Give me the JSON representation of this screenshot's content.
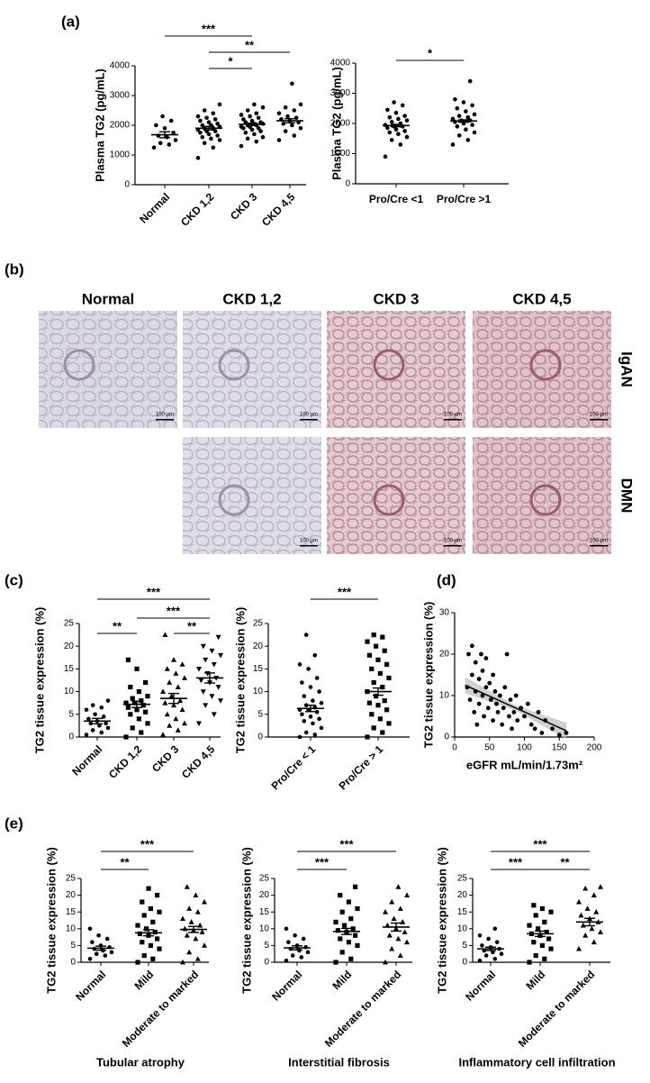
{
  "panel_labels": [
    "(a)",
    "(b)",
    "(c)",
    "(d)",
    "(e)"
  ],
  "histology": {
    "columns": [
      "Normal",
      "CKD 1,2",
      "CKD 3",
      "CKD 4,5"
    ],
    "rows": [
      "IgAN",
      "DMN"
    ],
    "scale_bar": "100 μm"
  },
  "chart_data": [
    {
      "type": "strip",
      "y_label": "Plasma TG2 (pg/mL)",
      "categories": [
        "Normal",
        "CKD 1,2",
        "CKD 3",
        "CKD 4,5"
      ],
      "ylim": [
        0,
        4000
      ],
      "yticks": [
        0,
        1000,
        2000,
        3000,
        4000
      ],
      "markers": [
        "circle",
        "circle",
        "circle",
        "circle"
      ],
      "groups": [
        {
          "values": [
            1250,
            1350,
            1400,
            1500,
            1600,
            1650,
            1750,
            1900,
            2000,
            2150,
            2300
          ]
        },
        {
          "values": [
            900,
            1250,
            1400,
            1500,
            1550,
            1600,
            1650,
            1700,
            1750,
            1800,
            1800,
            1850,
            1900,
            1900,
            1950,
            2000,
            2000,
            2050,
            2100,
            2150,
            2200,
            2250,
            2300,
            2400,
            2500,
            2700
          ]
        },
        {
          "values": [
            1300,
            1450,
            1550,
            1600,
            1700,
            1750,
            1800,
            1850,
            1900,
            1900,
            1950,
            1950,
            2000,
            2000,
            2050,
            2050,
            2100,
            2100,
            2150,
            2200,
            2250,
            2300,
            2350,
            2400,
            2500,
            2600,
            2700
          ]
        },
        {
          "values": [
            1500,
            1650,
            1800,
            1900,
            2000,
            2050,
            2100,
            2150,
            2200,
            2250,
            2300,
            2400,
            2500,
            2600,
            2700,
            3400
          ]
        }
      ],
      "means": [
        1680,
        1900,
        2030,
        2150
      ],
      "sems": [
        100,
        60,
        40,
        70
      ],
      "significance": [
        {
          "pair": [
            0,
            2
          ],
          "label": "***"
        },
        {
          "pair": [
            1,
            3
          ],
          "label": "**"
        },
        {
          "pair": [
            1,
            2
          ],
          "label": "*"
        }
      ]
    },
    {
      "type": "strip",
      "y_label": "Plasma TG2 (pg/mL)",
      "categories": [
        "Pro/Cre <1",
        "Pro/Cre >1"
      ],
      "ylim": [
        0,
        4000
      ],
      "yticks": [
        0,
        1000,
        2000,
        3000,
        4000
      ],
      "markers": [
        "circle",
        "circle"
      ],
      "groups": [
        {
          "values": [
            900,
            1300,
            1450,
            1550,
            1650,
            1700,
            1750,
            1800,
            1850,
            1900,
            1900,
            1950,
            2000,
            2050,
            2100,
            2150,
            2200,
            2250,
            2350,
            2450,
            2600,
            2700
          ]
        },
        {
          "values": [
            1300,
            1450,
            1600,
            1700,
            1800,
            1900,
            1950,
            2000,
            2050,
            2100,
            2100,
            2150,
            2200,
            2250,
            2300,
            2400,
            2500,
            2600,
            2700,
            2800,
            3400
          ]
        }
      ],
      "means": [
        1930,
        2080
      ],
      "sems": [
        40,
        40
      ],
      "significance": [
        {
          "pair": [
            0,
            1
          ],
          "label": "*"
        }
      ]
    },
    {
      "type": "strip",
      "y_label": "TG2 tissue expression (%)",
      "categories": [
        "Normal",
        "CKD 1,2",
        "CKD 3",
        "CKD 4,5"
      ],
      "ylim": [
        0,
        25
      ],
      "yticks": [
        0,
        5,
        10,
        15,
        20,
        25
      ],
      "markers": [
        "circle",
        "square",
        "triangle",
        "triangle-down"
      ],
      "groups": [
        {
          "values": [
            0.5,
            1,
            1.5,
            2,
            2.5,
            3,
            3,
            3.5,
            4,
            4.5,
            5,
            6,
            6.5,
            7,
            8
          ]
        },
        {
          "values": [
            0,
            1,
            2,
            3,
            4,
            5,
            5.5,
            6,
            6.5,
            7,
            7.5,
            7.5,
            8,
            8.5,
            9,
            10,
            11,
            12,
            15,
            17
          ]
        },
        {
          "values": [
            0.5,
            1.5,
            2.5,
            3,
            4,
            5,
            6,
            7,
            7.5,
            8,
            9,
            10,
            11,
            12,
            13,
            14,
            15,
            16,
            17,
            22.5
          ]
        },
        {
          "values": [
            3,
            5,
            7,
            8,
            9,
            10,
            11,
            12,
            12.5,
            13,
            14,
            15,
            16,
            17,
            18,
            19,
            20,
            22
          ]
        }
      ],
      "means": [
        3.5,
        7.2,
        8.5,
        13
      ],
      "sems": [
        0.6,
        0.7,
        1.1,
        1.1
      ],
      "significance": [
        {
          "pair": [
            0,
            3
          ],
          "label": "***"
        },
        {
          "pair": [
            1,
            3
          ],
          "label": "***"
        },
        {
          "pair": [
            0,
            1
          ],
          "label": "**"
        },
        {
          "pair": [
            2,
            3
          ],
          "label": "**"
        }
      ]
    },
    {
      "type": "strip",
      "y_label": "TG2 tissue expression (%)",
      "categories": [
        "Pro/Cre < 1",
        "Pro/Cre > 1"
      ],
      "ylim": [
        0,
        25
      ],
      "yticks": [
        0,
        5,
        10,
        15,
        20,
        25
      ],
      "markers": [
        "circle",
        "square"
      ],
      "groups": [
        {
          "values": [
            0,
            0.5,
            1,
            2,
            3,
            3.5,
            4,
            4.5,
            5,
            5.5,
            6,
            6,
            6.5,
            7,
            7.5,
            8,
            9,
            10,
            11,
            12,
            13,
            15,
            16,
            18,
            22.5
          ]
        },
        {
          "values": [
            0,
            1,
            2,
            3,
            4,
            5,
            6,
            7,
            7.5,
            8,
            9,
            10,
            11,
            12,
            13,
            14,
            15,
            16,
            17,
            18,
            19,
            20,
            21,
            22,
            22.5
          ]
        }
      ],
      "means": [
        6.3,
        10
      ],
      "sems": [
        0.7,
        0.8
      ],
      "significance": [
        {
          "pair": [
            0,
            1
          ],
          "label": "***"
        }
      ]
    },
    {
      "type": "scatter",
      "y_label": "TG2 tissue expression (%)",
      "x_label": "eGFR mL/min/1.73m²",
      "xlim": [
        0,
        200
      ],
      "xticks": [
        0,
        50,
        100,
        150,
        200
      ],
      "ylim": [
        0,
        30
      ],
      "yticks": [
        0,
        10,
        20,
        30
      ],
      "x": [
        18,
        20,
        22,
        25,
        25,
        28,
        30,
        30,
        32,
        35,
        35,
        38,
        40,
        40,
        42,
        45,
        45,
        48,
        50,
        52,
        55,
        55,
        58,
        60,
        62,
        65,
        68,
        70,
        72,
        75,
        78,
        80,
        82,
        85,
        88,
        90,
        95,
        100,
        105,
        110,
        115,
        120,
        125,
        130,
        140,
        150,
        160
      ],
      "y": [
        12,
        20,
        9,
        15,
        22,
        6,
        18,
        11,
        3,
        14,
        8,
        20,
        10,
        16,
        5,
        12,
        19,
        7,
        13,
        9,
        15,
        4,
        11,
        8,
        6,
        10,
        3,
        7,
        12,
        20,
        5,
        9,
        2,
        6,
        10,
        4,
        7,
        5,
        8,
        3,
        2,
        6,
        1,
        4,
        2,
        0.5,
        1
      ],
      "fit_x": [
        15,
        160
      ],
      "fit_y": [
        12.5,
        1.5
      ]
    },
    {
      "type": "strip",
      "title": "Tubular atrophy",
      "y_label": "TG2 tissue expression (%)",
      "categories": [
        "Normal",
        "Mild",
        "Moderate to marked"
      ],
      "ylim": [
        0,
        25
      ],
      "yticks": [
        0,
        5,
        10,
        15,
        20,
        25
      ],
      "markers": [
        "circle",
        "square",
        "triangle"
      ],
      "groups": [
        {
          "values": [
            1,
            2,
            2.5,
            3,
            3.5,
            4,
            4.5,
            5,
            6,
            7,
            8,
            10
          ]
        },
        {
          "values": [
            0,
            1,
            2,
            4,
            5,
            6,
            7,
            8,
            8.5,
            9,
            10,
            11,
            12,
            14,
            15,
            16,
            18,
            20,
            22
          ]
        },
        {
          "values": [
            0,
            1,
            3,
            5,
            7,
            8,
            9,
            9.5,
            10,
            11,
            12,
            13,
            15,
            16,
            18,
            20,
            22.5
          ]
        }
      ],
      "means": [
        4.2,
        8.8,
        9.8
      ],
      "sems": [
        0.6,
        0.9,
        0.9
      ],
      "significance": [
        {
          "pair": [
            0,
            2
          ],
          "label": "***"
        },
        {
          "pair": [
            0,
            1
          ],
          "label": "**"
        }
      ]
    },
    {
      "type": "strip",
      "title": "Interstitial fibrosis",
      "y_label": "TG2 tissue expression (%)",
      "categories": [
        "Normal",
        "Mild",
        "Moderate to marked"
      ],
      "ylim": [
        0,
        25
      ],
      "yticks": [
        0,
        5,
        10,
        15,
        20,
        25
      ],
      "markers": [
        "circle",
        "square",
        "triangle"
      ],
      "groups": [
        {
          "values": [
            0.5,
            1.5,
            2,
            3,
            3.5,
            4,
            4.5,
            5,
            6,
            7,
            8,
            10
          ]
        },
        {
          "values": [
            0,
            1,
            3,
            5,
            6,
            7,
            8,
            9,
            9.5,
            10,
            11,
            12,
            13,
            15,
            16,
            18,
            20,
            22.5
          ]
        },
        {
          "values": [
            0,
            2,
            4,
            6,
            7,
            8,
            9,
            10,
            11,
            12,
            13,
            15,
            16,
            18,
            20,
            22.5
          ]
        }
      ],
      "means": [
        4.3,
        9.2,
        10.5
      ],
      "sems": [
        0.6,
        0.9,
        1.2
      ],
      "significance": [
        {
          "pair": [
            0,
            2
          ],
          "label": "***"
        },
        {
          "pair": [
            0,
            1
          ],
          "label": "***"
        }
      ]
    },
    {
      "type": "strip",
      "title": "Inflammatory cell infiltration",
      "y_label": "TG2 tissue expression (%)",
      "categories": [
        "Normal",
        "Mild",
        "Moderate to marked"
      ],
      "ylim": [
        0,
        25
      ],
      "yticks": [
        0,
        5,
        10,
        15,
        20,
        25
      ],
      "markers": [
        "circle",
        "square",
        "triangle"
      ],
      "groups": [
        {
          "values": [
            0.5,
            1,
            2,
            2.5,
            3,
            3.5,
            4,
            4.5,
            5,
            6,
            7,
            8,
            10
          ]
        },
        {
          "values": [
            0,
            1,
            2,
            4,
            5,
            6,
            7,
            8,
            8.5,
            9,
            10,
            11,
            12,
            14,
            15,
            16,
            17
          ]
        },
        {
          "values": [
            4,
            6,
            8,
            9,
            10,
            11,
            12,
            13,
            14,
            15,
            16,
            18,
            20,
            22,
            22.5
          ]
        }
      ],
      "means": [
        4,
        8.5,
        12
      ],
      "sems": [
        0.5,
        0.8,
        1.1
      ],
      "significance": [
        {
          "pair": [
            0,
            2
          ],
          "label": "***"
        },
        {
          "pair": [
            0,
            1
          ],
          "label": "***"
        },
        {
          "pair": [
            1,
            2
          ],
          "label": "**"
        }
      ]
    }
  ]
}
